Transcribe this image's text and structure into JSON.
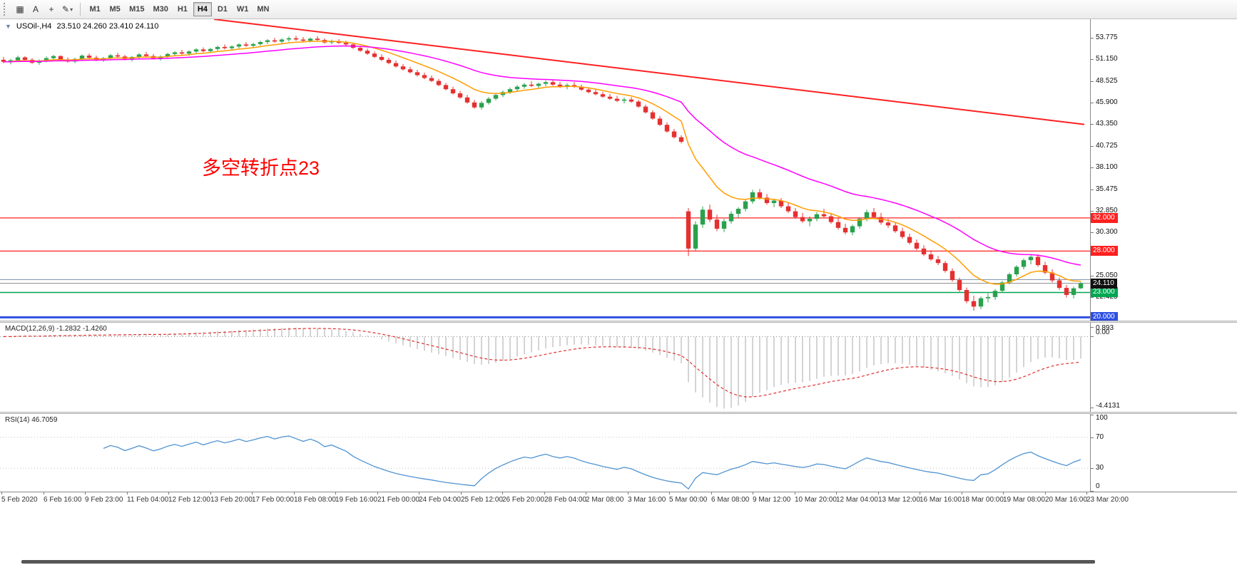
{
  "toolbar": {
    "icons": {
      "grid_glyph": "▦",
      "crosshair_glyph": "+",
      "draw_glyph": "✎",
      "caret_glyph": "▾"
    },
    "cursor_label": "A",
    "timeframes": [
      "M1",
      "M5",
      "M15",
      "M30",
      "H1",
      "H4",
      "D1",
      "W1",
      "MN"
    ],
    "active_timeframe": "H4"
  },
  "chart": {
    "collapse_arrow": "▼",
    "title": "USOil-,H4",
    "ohlc": "23.510 24.260 23.410 24.110",
    "annotation": {
      "text": "多空转折点23",
      "color": "#ff0000"
    },
    "up_color": "#2aa14d",
    "down_color": "#e53030",
    "price_min": 19.6,
    "price_max": 56.0,
    "y_ticks": [
      "53.775",
      "51.150",
      "48.525",
      "45.900",
      "43.350",
      "40.725",
      "38.100",
      "35.475",
      "32.850",
      "30.300",
      "27.675",
      "25.050",
      "22.425"
    ],
    "hlines": [
      {
        "price": 32.0,
        "label": "32.000",
        "color": "#ff2020",
        "width": 1.2,
        "badge": true
      },
      {
        "price": 28.0,
        "label": "28.000",
        "color": "#ff2020",
        "width": 1.2,
        "badge": true
      },
      {
        "price": 24.55,
        "label": "",
        "color": "#7f96ad",
        "width": 1,
        "badge": false
      },
      {
        "price": 23.0,
        "label": "23.000",
        "color": "#00a651",
        "width": 1.4,
        "badge": true
      },
      {
        "price": 20.0,
        "label": "20.000",
        "color": "#2e4fe0",
        "width": 3,
        "badge": true
      }
    ],
    "current_price": {
      "value": 24.11,
      "label": "24.110",
      "line_color": "#8c8c8c",
      "badge_color": "#101010"
    },
    "trendline": {
      "from_index": 30,
      "from_price": 56.0,
      "to_index": 152,
      "to_price": 43.3,
      "color": "#ff2020",
      "width": 2
    },
    "ma_fast": {
      "period": 10,
      "color": "#ff9d00",
      "width": 1.5
    },
    "ma_slow": {
      "period": 30,
      "color": "#ff00ff",
      "width": 1.5
    }
  },
  "macd": {
    "label": "MACD(12,26,9) -1.2832 -1.4260",
    "fast": 12,
    "slow": 26,
    "signal": 9,
    "scale": [
      "0.893",
      "0.00",
      "-4.4131"
    ],
    "hist_color": "#a8a8a8",
    "signal_color": "#e03030"
  },
  "rsi": {
    "label": "RSI(14) 46.7059",
    "period": 14,
    "scale": [
      100,
      70,
      30,
      0
    ],
    "levels": [
      70,
      30
    ],
    "color": "#4f93d2"
  },
  "time_axis": {
    "labels": [
      "5 Feb 2020",
      "6 Feb 16:00",
      "9 Feb 23:00",
      "11 Feb 04:00",
      "12 Feb 12:00",
      "13 Feb 20:00",
      "17 Feb 00:00",
      "18 Feb 08:00",
      "19 Feb 16:00",
      "21 Feb 00:00",
      "24 Feb 04:00",
      "25 Feb 12:00",
      "26 Feb 20:00",
      "28 Feb 04:00",
      "2 Mar 08:00",
      "3 Mar 16:00",
      "5 Mar 00:00",
      "6 Mar 08:00",
      "9 Mar 12:00",
      "10 Mar 20:00",
      "12 Mar 04:00",
      "13 Mar 12:00",
      "16 Mar 16:00",
      "18 Mar 00:00",
      "19 Mar 08:00",
      "20 Mar 16:00",
      "23 Mar 20:00"
    ]
  },
  "chart_data": {
    "type": "candlestick",
    "symbol": "USOil-",
    "timeframe": "H4",
    "last_ohlc": {
      "open": 23.51,
      "high": 24.26,
      "low": 23.41,
      "close": 24.11
    },
    "visible_price_range": [
      19.6,
      56.0
    ],
    "indicators": {
      "macd": {
        "params": [
          12,
          26,
          9
        ],
        "values": [
          -1.2832,
          -1.426
        ]
      },
      "rsi": {
        "params": [
          14
        ],
        "value": 46.7059
      }
    },
    "horizontal_levels": [
      32.0,
      28.0,
      23.0,
      20.0
    ],
    "candles": [
      [
        51.1,
        51.45,
        50.7,
        50.85
      ],
      [
        50.85,
        51.2,
        50.55,
        51.05
      ],
      [
        51.05,
        51.6,
        50.9,
        51.4
      ],
      [
        51.4,
        51.55,
        50.95,
        51.1
      ],
      [
        51.1,
        51.3,
        50.6,
        50.75
      ],
      [
        50.75,
        51.15,
        50.5,
        50.95
      ],
      [
        50.95,
        51.5,
        50.8,
        51.3
      ],
      [
        51.3,
        51.7,
        51.05,
        51.55
      ],
      [
        51.55,
        51.65,
        51.0,
        51.15
      ],
      [
        51.15,
        51.4,
        50.75,
        50.9
      ],
      [
        50.9,
        51.35,
        50.7,
        51.2
      ],
      [
        51.2,
        51.75,
        51.0,
        51.6
      ],
      [
        51.6,
        51.85,
        51.2,
        51.35
      ],
      [
        51.35,
        51.6,
        50.95,
        51.1
      ],
      [
        51.1,
        51.45,
        50.85,
        51.3
      ],
      [
        51.3,
        51.8,
        51.1,
        51.65
      ],
      [
        51.65,
        51.95,
        51.35,
        51.5
      ],
      [
        51.5,
        51.7,
        51.05,
        51.2
      ],
      [
        51.2,
        51.55,
        50.9,
        51.45
      ],
      [
        51.45,
        51.9,
        51.25,
        51.75
      ],
      [
        51.75,
        52.05,
        51.4,
        51.55
      ],
      [
        51.55,
        51.8,
        51.15,
        51.3
      ],
      [
        51.3,
        51.65,
        51.0,
        51.5
      ],
      [
        51.5,
        51.95,
        51.3,
        51.8
      ],
      [
        51.8,
        52.15,
        51.55,
        52.0
      ],
      [
        52.0,
        52.3,
        51.7,
        51.85
      ],
      [
        51.85,
        52.25,
        51.6,
        52.1
      ],
      [
        52.1,
        52.5,
        51.9,
        52.35
      ],
      [
        52.35,
        52.6,
        52.0,
        52.15
      ],
      [
        52.15,
        52.55,
        51.95,
        52.4
      ],
      [
        52.4,
        52.8,
        52.2,
        52.65
      ],
      [
        52.65,
        52.95,
        52.35,
        52.5
      ],
      [
        52.5,
        52.85,
        52.25,
        52.7
      ],
      [
        52.7,
        53.1,
        52.5,
        52.95
      ],
      [
        52.95,
        53.25,
        52.65,
        52.8
      ],
      [
        52.8,
        53.15,
        52.55,
        53.0
      ],
      [
        53.0,
        53.4,
        52.8,
        53.25
      ],
      [
        53.25,
        53.6,
        53.0,
        53.45
      ],
      [
        53.45,
        53.75,
        53.15,
        53.3
      ],
      [
        53.3,
        53.7,
        53.1,
        53.55
      ],
      [
        53.55,
        53.9,
        53.3,
        53.7
      ],
      [
        53.7,
        54.0,
        53.4,
        53.55
      ],
      [
        53.55,
        53.85,
        53.25,
        53.4
      ],
      [
        53.4,
        53.8,
        53.2,
        53.65
      ],
      [
        53.65,
        53.95,
        53.35,
        53.5
      ],
      [
        53.5,
        53.7,
        53.05,
        53.2
      ],
      [
        53.2,
        53.55,
        52.95,
        53.35
      ],
      [
        53.35,
        53.6,
        53.0,
        53.15
      ],
      [
        53.15,
        53.4,
        52.8,
        52.95
      ],
      [
        52.95,
        53.1,
        52.4,
        52.55
      ],
      [
        52.55,
        52.8,
        52.05,
        52.2
      ],
      [
        52.2,
        52.45,
        51.7,
        51.85
      ],
      [
        51.85,
        52.1,
        51.3,
        51.45
      ],
      [
        51.45,
        51.75,
        50.95,
        51.1
      ],
      [
        51.1,
        51.35,
        50.55,
        50.7
      ],
      [
        50.7,
        51.0,
        50.15,
        50.3
      ],
      [
        50.3,
        50.6,
        49.8,
        49.95
      ],
      [
        49.95,
        50.25,
        49.45,
        49.6
      ],
      [
        49.6,
        49.9,
        49.1,
        49.25
      ],
      [
        49.25,
        49.55,
        48.75,
        48.9
      ],
      [
        48.9,
        49.2,
        48.4,
        48.55
      ],
      [
        48.55,
        48.8,
        47.9,
        48.05
      ],
      [
        48.05,
        48.3,
        47.4,
        47.55
      ],
      [
        47.55,
        47.85,
        46.9,
        47.05
      ],
      [
        47.05,
        47.35,
        46.4,
        46.55
      ],
      [
        46.55,
        46.85,
        45.8,
        45.95
      ],
      [
        45.95,
        46.25,
        45.2,
        45.35
      ],
      [
        45.35,
        46.1,
        45.1,
        45.9
      ],
      [
        45.9,
        46.6,
        45.7,
        46.4
      ],
      [
        46.4,
        47.0,
        46.2,
        46.85
      ],
      [
        46.85,
        47.4,
        46.6,
        47.2
      ],
      [
        47.2,
        47.75,
        47.0,
        47.55
      ],
      [
        47.55,
        48.05,
        47.3,
        47.85
      ],
      [
        47.85,
        48.3,
        47.6,
        48.1
      ],
      [
        48.1,
        48.5,
        47.8,
        47.95
      ],
      [
        47.95,
        48.35,
        47.6,
        48.2
      ],
      [
        48.2,
        48.6,
        47.9,
        48.4
      ],
      [
        48.4,
        48.7,
        47.95,
        48.1
      ],
      [
        48.1,
        48.45,
        47.7,
        47.9
      ],
      [
        47.9,
        48.25,
        47.55,
        48.05
      ],
      [
        48.05,
        48.4,
        47.7,
        47.85
      ],
      [
        47.85,
        48.1,
        47.35,
        47.5
      ],
      [
        47.5,
        47.8,
        47.05,
        47.2
      ],
      [
        47.2,
        47.55,
        46.8,
        46.95
      ],
      [
        46.95,
        47.25,
        46.5,
        46.65
      ],
      [
        46.65,
        47.0,
        46.25,
        46.4
      ],
      [
        46.4,
        46.75,
        46.0,
        46.15
      ],
      [
        46.15,
        46.55,
        45.85,
        46.3
      ],
      [
        46.3,
        46.6,
        45.9,
        46.05
      ],
      [
        46.05,
        46.25,
        45.3,
        45.45
      ],
      [
        45.45,
        45.7,
        44.6,
        44.75
      ],
      [
        44.75,
        45.0,
        43.85,
        44.0
      ],
      [
        44.0,
        44.3,
        43.1,
        43.25
      ],
      [
        43.25,
        43.55,
        42.3,
        42.45
      ],
      [
        42.45,
        42.75,
        41.6,
        41.75
      ],
      [
        41.75,
        42.0,
        41.0,
        41.2
      ],
      [
        32.8,
        33.2,
        27.4,
        28.3
      ],
      [
        28.3,
        31.6,
        28.0,
        31.2
      ],
      [
        31.2,
        33.4,
        30.8,
        33.0
      ],
      [
        33.0,
        33.6,
        31.5,
        31.8
      ],
      [
        31.8,
        32.4,
        30.4,
        30.7
      ],
      [
        30.7,
        31.9,
        30.3,
        31.6
      ],
      [
        31.6,
        32.8,
        31.3,
        32.5
      ],
      [
        32.5,
        33.3,
        32.0,
        33.1
      ],
      [
        33.1,
        34.2,
        32.8,
        34.0
      ],
      [
        34.0,
        35.4,
        33.7,
        35.1
      ],
      [
        35.1,
        35.5,
        34.2,
        34.45
      ],
      [
        34.45,
        34.9,
        33.6,
        33.8
      ],
      [
        33.8,
        34.3,
        33.3,
        34.1
      ],
      [
        34.1,
        34.4,
        33.2,
        33.4
      ],
      [
        33.4,
        33.8,
        32.6,
        32.8
      ],
      [
        32.8,
        33.2,
        31.9,
        32.1
      ],
      [
        32.1,
        32.6,
        31.4,
        31.6
      ],
      [
        31.6,
        32.2,
        31.0,
        31.9
      ],
      [
        31.9,
        32.7,
        31.6,
        32.45
      ],
      [
        32.45,
        33.1,
        32.0,
        32.2
      ],
      [
        32.2,
        32.6,
        31.3,
        31.5
      ],
      [
        31.5,
        31.95,
        30.6,
        30.8
      ],
      [
        30.8,
        31.3,
        30.0,
        30.25
      ],
      [
        30.25,
        31.2,
        29.9,
        31.0
      ],
      [
        31.0,
        32.1,
        30.7,
        31.9
      ],
      [
        31.9,
        33.0,
        31.6,
        32.7
      ],
      [
        32.7,
        33.2,
        31.9,
        32.1
      ],
      [
        32.1,
        32.6,
        31.2,
        31.45
      ],
      [
        31.45,
        31.9,
        30.8,
        31.1
      ],
      [
        31.1,
        31.4,
        30.2,
        30.4
      ],
      [
        30.4,
        30.8,
        29.5,
        29.7
      ],
      [
        29.7,
        30.1,
        28.8,
        29.0
      ],
      [
        29.0,
        29.4,
        28.1,
        28.3
      ],
      [
        28.3,
        28.7,
        27.4,
        27.6
      ],
      [
        27.6,
        28.1,
        26.8,
        27.0
      ],
      [
        27.0,
        27.4,
        26.3,
        26.55
      ],
      [
        26.55,
        26.8,
        25.4,
        25.6
      ],
      [
        25.6,
        25.9,
        24.3,
        24.5
      ],
      [
        24.5,
        24.8,
        23.1,
        23.3
      ],
      [
        23.3,
        23.6,
        21.7,
        21.95
      ],
      [
        21.95,
        22.6,
        20.8,
        21.3
      ],
      [
        21.3,
        22.5,
        21.0,
        22.3
      ],
      [
        22.3,
        22.9,
        21.8,
        22.45
      ],
      [
        22.45,
        23.4,
        22.1,
        23.2
      ],
      [
        23.2,
        24.4,
        23.0,
        24.2
      ],
      [
        24.2,
        25.4,
        24.0,
        25.2
      ],
      [
        25.2,
        26.3,
        24.9,
        26.1
      ],
      [
        26.1,
        27.1,
        25.8,
        26.9
      ],
      [
        26.9,
        27.55,
        26.4,
        27.3
      ],
      [
        27.3,
        27.6,
        26.1,
        26.3
      ],
      [
        26.3,
        26.7,
        25.2,
        25.4
      ],
      [
        25.4,
        25.8,
        24.2,
        24.45
      ],
      [
        24.45,
        24.8,
        23.3,
        23.55
      ],
      [
        23.55,
        23.9,
        22.4,
        22.7
      ],
      [
        22.7,
        23.7,
        22.3,
        23.5
      ],
      [
        23.51,
        24.26,
        23.41,
        24.11
      ]
    ]
  }
}
